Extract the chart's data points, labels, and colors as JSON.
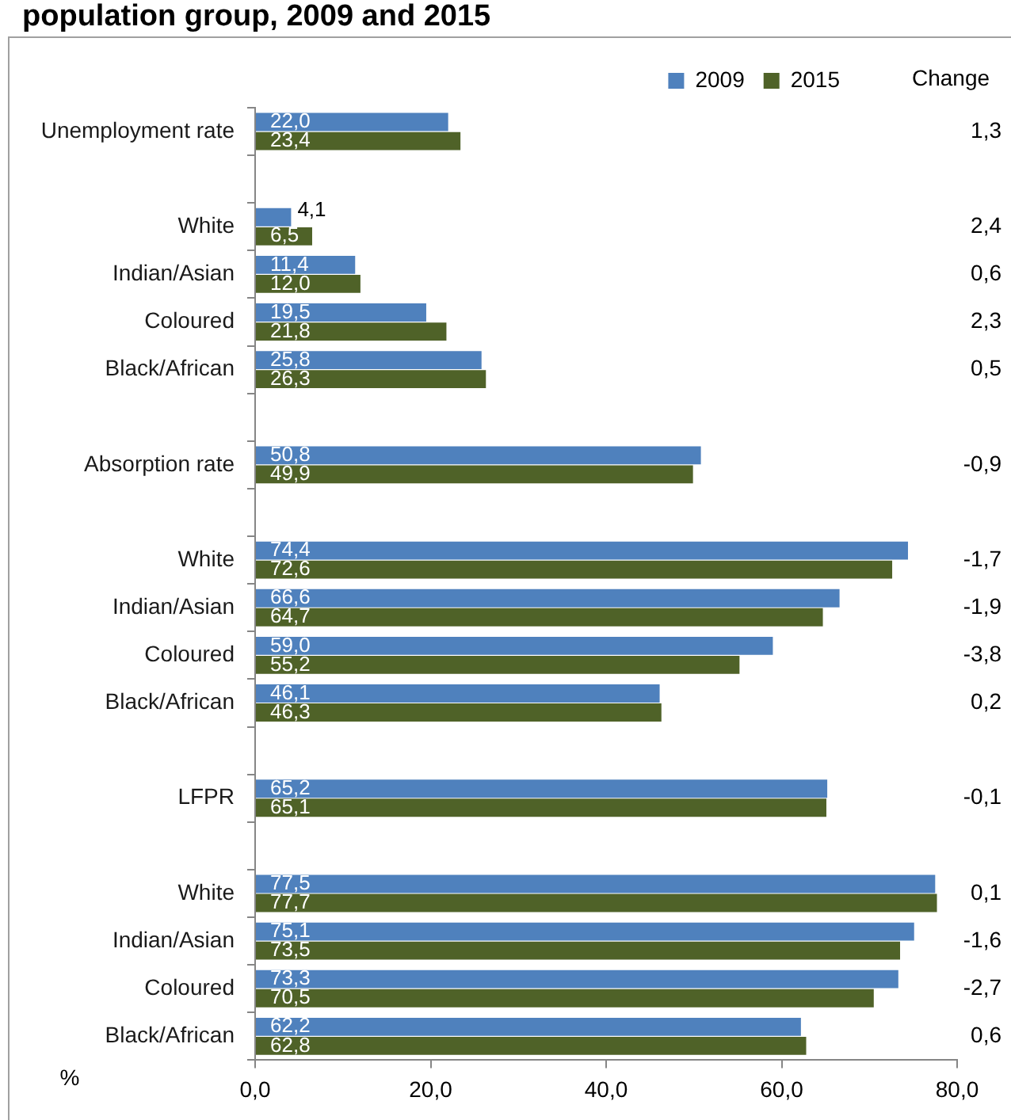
{
  "chart_data": {
    "type": "bar",
    "orientation": "horizontal",
    "title": "population group, 2009 and 2015",
    "categories": [
      "Unemployment rate",
      null,
      "White",
      "Indian/Asian",
      "Coloured",
      "Black/African",
      null,
      "Absorption rate",
      null,
      "White",
      "Indian/Asian",
      "Coloured",
      "Black/African",
      null,
      "LFPR",
      null,
      "White",
      "Indian/Asian",
      "Coloured",
      "Black/African"
    ],
    "series": [
      {
        "name": "2009",
        "color": "#4f81bd",
        "values": [
          22.0,
          null,
          4.1,
          11.4,
          19.5,
          25.8,
          null,
          50.8,
          null,
          74.4,
          66.6,
          59.0,
          46.1,
          null,
          65.2,
          null,
          77.5,
          75.1,
          73.3,
          62.2
        ],
        "value_labels": [
          "22,0",
          null,
          "4,1",
          "11,4",
          "19,5",
          "25,8",
          null,
          "50,8",
          null,
          "74,4",
          "66,6",
          "59,0",
          "46,1",
          null,
          "65,2",
          null,
          "77,5",
          "75,1",
          "73,3",
          "62,2"
        ]
      },
      {
        "name": "2015",
        "color": "#4f6228",
        "values": [
          23.4,
          null,
          6.5,
          12.0,
          21.8,
          26.3,
          null,
          49.9,
          null,
          72.6,
          64.7,
          55.2,
          46.3,
          null,
          65.1,
          null,
          77.7,
          73.5,
          70.5,
          62.8
        ],
        "value_labels": [
          "23,4",
          null,
          "6,5",
          "12,0",
          "21,8",
          "26,3",
          null,
          "49,9",
          null,
          "72,6",
          "64,7",
          "55,2",
          "46,3",
          null,
          "65,1",
          null,
          "77,7",
          "73,5",
          "70,5",
          "62,8"
        ]
      }
    ],
    "xlim": [
      0,
      80
    ],
    "xticks": [
      {
        "value": 0,
        "label": "0,0"
      },
      {
        "value": 20,
        "label": "20,0"
      },
      {
        "value": 40,
        "label": "40,0"
      },
      {
        "value": 60,
        "label": "60,0"
      },
      {
        "value": 80,
        "label": "80,0"
      }
    ],
    "xlabel": "%",
    "legend": "top right",
    "grid": false,
    "annotations": [
      "Change",
      "1,3",
      "2,4",
      "0,6",
      "2,3",
      "0,5",
      "-0,9",
      "-1,7",
      "-1,9",
      "-3,8",
      "0,2",
      "-0,1",
      "0,1",
      "-1,6",
      "-2,7",
      "0,6"
    ]
  }
}
